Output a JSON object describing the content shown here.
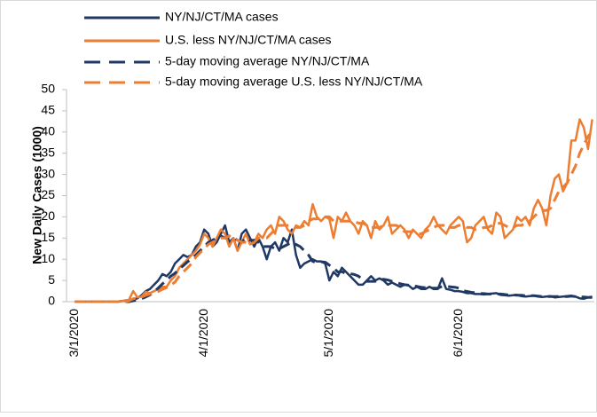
{
  "chart_data": {
    "type": "line",
    "y_axis_label": "New Daily Cases (1000)",
    "ylim": [
      0,
      50
    ],
    "yticks": [
      0,
      5,
      10,
      15,
      20,
      25,
      30,
      35,
      40,
      45,
      50
    ],
    "categories": [
      "3/1/2020",
      null,
      null,
      null,
      null,
      null,
      null,
      null,
      null,
      null,
      null,
      null,
      null,
      null,
      null,
      null,
      null,
      null,
      null,
      null,
      null,
      null,
      null,
      null,
      null,
      null,
      null,
      null,
      null,
      null,
      null,
      "4/1/2020",
      null,
      null,
      null,
      null,
      null,
      null,
      null,
      null,
      null,
      null,
      null,
      null,
      null,
      null,
      null,
      null,
      null,
      null,
      null,
      null,
      null,
      null,
      null,
      null,
      null,
      null,
      null,
      null,
      null,
      "5/1/2020",
      null,
      null,
      null,
      null,
      null,
      null,
      null,
      null,
      null,
      null,
      null,
      null,
      null,
      null,
      null,
      null,
      null,
      null,
      null,
      null,
      null,
      null,
      null,
      null,
      null,
      null,
      null,
      null,
      null,
      null,
      "6/1/2020",
      null,
      null,
      null,
      null,
      null,
      null,
      null,
      null,
      null,
      null,
      null,
      null,
      null,
      null,
      null,
      null,
      null,
      null,
      null,
      null,
      null,
      null,
      null,
      null,
      null,
      null,
      null,
      null,
      null,
      null,
      null,
      null
    ],
    "series": [
      {
        "name": "NY/NJ/CT/MA cases",
        "color": "#1f3864",
        "dashed": false,
        "values": [
          0,
          0,
          0,
          0,
          0,
          0,
          0,
          0,
          0,
          0,
          0,
          0.1,
          0.2,
          0.3,
          0.5,
          0.8,
          1.5,
          2.5,
          3,
          4,
          5,
          6.5,
          6,
          7,
          9,
          10,
          11,
          10.5,
          11,
          13,
          14,
          17,
          16,
          13,
          14,
          16,
          18,
          14,
          15,
          12,
          16,
          17,
          15,
          13,
          15,
          13,
          10,
          13,
          14,
          12,
          15,
          14,
          17,
          11,
          8,
          9,
          9.5,
          10,
          9.5,
          9.5,
          9,
          5,
          7,
          6,
          8,
          7,
          6,
          5,
          4,
          4,
          5,
          6,
          5,
          5.5,
          5,
          4,
          4.5,
          4,
          3.5,
          4,
          3.8,
          3,
          3.5,
          3,
          3,
          3.5,
          3,
          3,
          5.5,
          3,
          2.8,
          2.5,
          2.5,
          2.3,
          2,
          2,
          1.8,
          1.8,
          1.7,
          1.8,
          1.9,
          2,
          1.6,
          1.5,
          1.4,
          1.5,
          1.6,
          1.3,
          1.2,
          1.3,
          1.4,
          1.2,
          1.1,
          1.2,
          1.3,
          1,
          1.1,
          1.2,
          1.3,
          1.4,
          1.2,
          0.8,
          0.7,
          1,
          1.2
        ]
      },
      {
        "name": "U.S. less NY/NJ/CT/MA cases",
        "color": "#ed7d31",
        "dashed": false,
        "values": [
          0,
          0,
          0,
          0,
          0,
          0,
          0,
          0,
          0,
          0,
          0,
          0.1,
          0.3,
          0.5,
          2.5,
          1,
          1.2,
          2.3,
          2,
          2.5,
          3,
          3.5,
          3.5,
          5,
          6,
          8,
          9,
          10,
          11,
          12,
          13.5,
          16,
          15,
          13,
          15,
          17,
          16,
          13,
          15,
          12,
          14,
          16,
          13.5,
          14,
          16,
          15,
          17,
          18,
          16,
          20,
          19,
          17,
          16,
          18,
          17.5,
          19,
          18,
          23,
          20,
          19,
          20,
          19.5,
          15,
          20,
          19,
          21,
          19,
          18,
          16,
          19,
          18,
          15,
          19,
          17,
          18,
          20,
          16,
          17,
          18,
          17,
          15,
          17,
          16,
          15,
          17,
          18,
          20,
          18,
          17,
          16,
          18,
          19,
          20,
          19,
          14,
          15,
          18,
          19,
          20,
          17,
          16,
          21,
          20,
          15,
          16,
          17,
          20,
          19,
          20,
          18,
          22,
          24,
          22,
          18,
          25,
          29,
          30,
          26,
          28,
          38,
          38,
          43,
          41,
          36,
          43
        ]
      },
      {
        "name": "5-day moving average NY/NJ/CT/MA",
        "color": "#1f3864",
        "dashed": true,
        "values": [
          0,
          0,
          0,
          0,
          0,
          0,
          0,
          0,
          0,
          0,
          0,
          0,
          0,
          0,
          0.2,
          0.4,
          0.7,
          1.1,
          1.6,
          2.4,
          3.2,
          4.2,
          5,
          6,
          6.7,
          7.7,
          8.5,
          9.4,
          10.1,
          11,
          12,
          13,
          14,
          14.5,
          15,
          15.5,
          15,
          15.5,
          15,
          14.5,
          14,
          15,
          14.5,
          14.5,
          14,
          13,
          13,
          13,
          12.5,
          12.5,
          13,
          13.5,
          14,
          13.5,
          13,
          12,
          11,
          9.5,
          9.2,
          9.4,
          9.3,
          8.6,
          8,
          7,
          7.1,
          6.6,
          6.6,
          6.4,
          6,
          5.2,
          4.8,
          4.8,
          4.8,
          5.1,
          5.3,
          5.1,
          4.8,
          4.6,
          4.2,
          4,
          3.9,
          3.7,
          3.6,
          3.4,
          3.3,
          3.2,
          3.2,
          3.2,
          3.6,
          3.6,
          3.5,
          3.4,
          3.2,
          2.6,
          2.4,
          2.2,
          2.1,
          1.9,
          1.9,
          1.8,
          1.8,
          1.8,
          1.8,
          1.7,
          1.6,
          1.6,
          1.5,
          1.5,
          1.4,
          1.4,
          1.4,
          1.3,
          1.2,
          1.2,
          1.2,
          1.2,
          1.2,
          1.2,
          1.2,
          1.3,
          1.2,
          1.1,
          1.1,
          1,
          1
        ]
      },
      {
        "name": "5-day moving average U.S. less NY/NJ/CT/MA",
        "color": "#ed7d31",
        "dashed": true,
        "values": [
          0,
          0,
          0,
          0,
          0,
          0,
          0,
          0,
          0,
          0,
          0,
          0,
          0,
          0.2,
          0.7,
          0.9,
          1.1,
          1.5,
          1.8,
          2.1,
          2.4,
          2.9,
          3.3,
          3.9,
          4.6,
          6,
          7,
          8,
          9,
          10.5,
          11.5,
          12.5,
          13.5,
          14,
          14.5,
          15,
          15,
          15.5,
          15,
          14.5,
          14,
          14,
          13.5,
          14,
          15,
          15,
          15,
          16,
          17,
          18,
          18,
          18,
          18,
          17.5,
          17.5,
          18,
          19,
          19.5,
          19.5,
          20,
          20,
          20,
          19,
          19,
          19,
          19,
          19,
          19,
          18.5,
          18.5,
          18,
          17.5,
          17.5,
          17.5,
          18,
          18,
          18,
          18,
          17.5,
          16.5,
          16.5,
          16.5,
          16,
          16,
          16.5,
          17,
          17.5,
          18,
          18,
          18,
          17.5,
          17.5,
          18,
          18,
          17.5,
          17.5,
          17,
          17,
          17.5,
          17.5,
          18,
          18.5,
          18.5,
          18,
          17.5,
          17.5,
          18,
          18,
          18.5,
          19,
          20,
          21,
          21.5,
          21.5,
          22,
          24,
          26,
          27,
          28,
          30,
          32,
          35,
          37,
          39,
          40
        ]
      }
    ]
  }
}
